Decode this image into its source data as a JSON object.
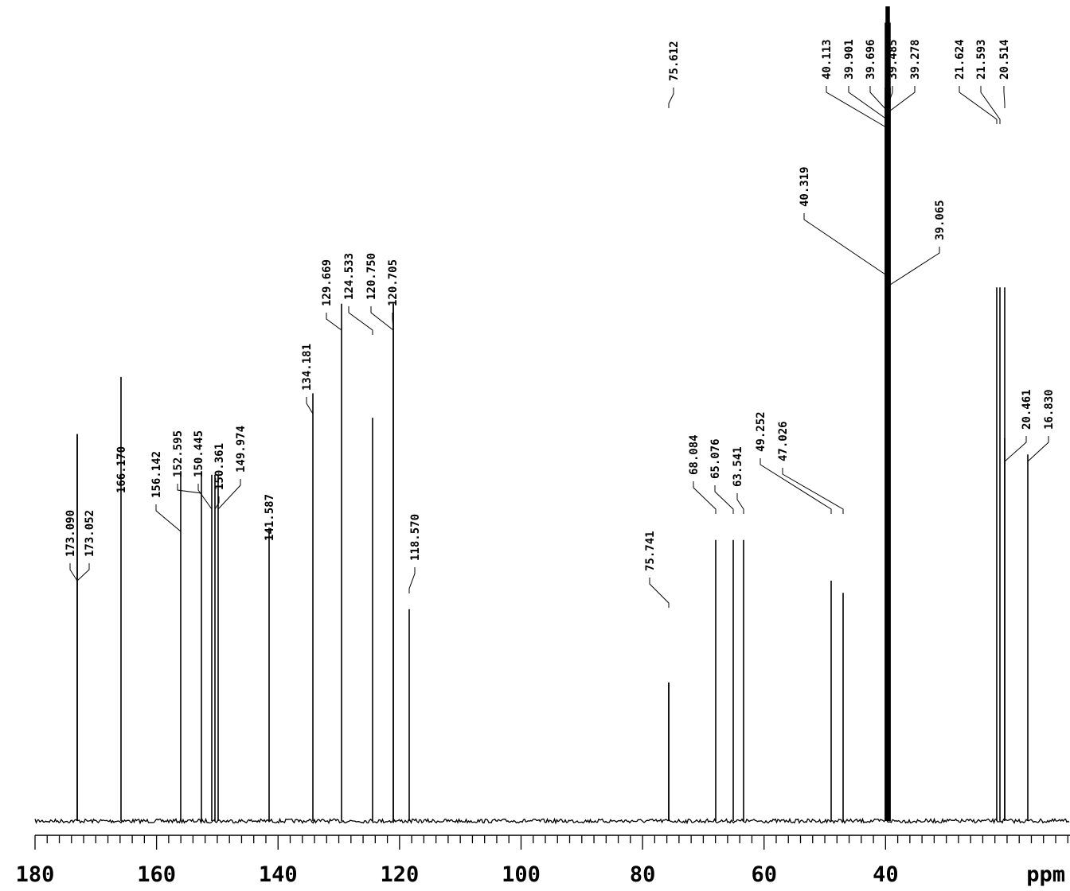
{
  "chart_data": {
    "type": "line",
    "title": "",
    "xlabel": "ppm",
    "ylabel": "",
    "x_axis": {
      "reversed": true,
      "xlim": [
        180,
        16
      ],
      "major_ticks": [
        180,
        160,
        140,
        120,
        100,
        80,
        60,
        40
      ],
      "tick_labels": [
        "180",
        "160",
        "140",
        "120",
        "100",
        "80",
        "60",
        "40"
      ],
      "unit_label": "ppm",
      "minor_tick_step": 2
    },
    "grid": false,
    "legend": "none",
    "line_color": "#000000",
    "peaks": [
      {
        "ppm": 173.09,
        "label": "173.090",
        "height": 0.475
      },
      {
        "ppm": 173.052,
        "label": "173.052",
        "height": 0.475
      },
      {
        "ppm": 166.17,
        "label": "166.170",
        "height": 0.545
      },
      {
        "ppm": 156.142,
        "label": "156.142",
        "height": 0.425
      },
      {
        "ppm": 152.595,
        "label": "152.595",
        "height": 0.425
      },
      {
        "ppm": 150.445,
        "label": "150.445",
        "height": 0.425
      },
      {
        "ppm": 150.361,
        "label": "150.361",
        "height": 0.425
      },
      {
        "ppm": 149.974,
        "label": "149.974",
        "height": 0.425
      },
      {
        "ppm": 141.587,
        "label": "141.587",
        "height": 0.36
      },
      {
        "ppm": 134.181,
        "label": "134.181",
        "height": 0.525
      },
      {
        "ppm": 129.669,
        "label": "129.669",
        "height": 0.635
      },
      {
        "ppm": 124.533,
        "label": "124.533",
        "height": 0.495
      },
      {
        "ppm": 120.75,
        "label": "120.750",
        "height": 0.635
      },
      {
        "ppm": 120.705,
        "label": "120.705",
        "height": 0.635
      },
      {
        "ppm": 118.57,
        "label": "118.570",
        "height": 0.26
      },
      {
        "ppm": 75.741,
        "label": "75.741",
        "height": 0.17
      },
      {
        "ppm": 75.612,
        "label": "75.612",
        "height": 0.17
      },
      {
        "ppm": 68.084,
        "label": "68.084",
        "height": 0.345
      },
      {
        "ppm": 65.076,
        "label": "65.076",
        "height": 0.345
      },
      {
        "ppm": 63.541,
        "label": "63.541",
        "height": 0.345
      },
      {
        "ppm": 49.252,
        "label": "49.252",
        "height": 0.295
      },
      {
        "ppm": 47.026,
        "label": "47.026",
        "height": 0.28
      },
      {
        "ppm": 40.319,
        "label": "40.319",
        "height": 0.9
      },
      {
        "ppm": 40.113,
        "label": "40.113",
        "height": 0.98
      },
      {
        "ppm": 39.901,
        "label": "39.901",
        "height": 1.0
      },
      {
        "ppm": 39.696,
        "label": "39.696",
        "height": 1.0
      },
      {
        "ppm": 39.485,
        "label": "39.485",
        "height": 1.0
      },
      {
        "ppm": 39.278,
        "label": "39.278",
        "height": 0.98
      },
      {
        "ppm": 39.065,
        "label": "39.065",
        "height": 0.9
      },
      {
        "ppm": 21.624,
        "label": "21.624",
        "height": 0.655
      },
      {
        "ppm": 21.593,
        "label": "21.593",
        "height": 0.655
      },
      {
        "ppm": 20.514,
        "label": "20.514",
        "height": 0.655
      },
      {
        "ppm": 20.461,
        "label": "20.461",
        "height": 0.47
      },
      {
        "ppm": 16.83,
        "label": "16.830",
        "height": 0.45
      }
    ]
  }
}
